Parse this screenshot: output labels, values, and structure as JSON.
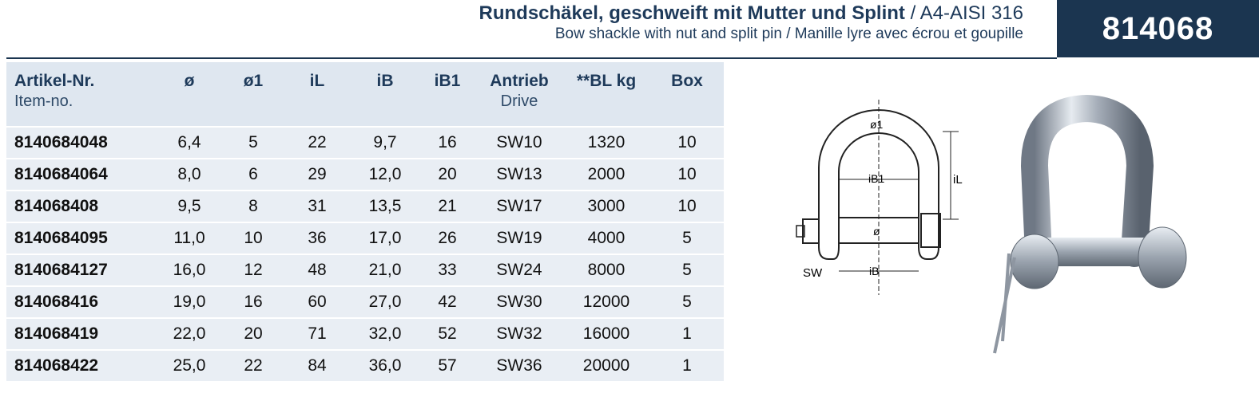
{
  "header": {
    "title_de": "Rundschäkel, geschweift mit Mutter und Splint",
    "material": "/ A4-AISI 316",
    "title_en": "Bow shackle with nut and split pin",
    "title_fr": "/ Manille lyre avec écrou et goupille",
    "article_number": "814068"
  },
  "table": {
    "columns": [
      {
        "de": "Artikel-Nr.",
        "en": "Item-no."
      },
      {
        "de": "ø",
        "en": ""
      },
      {
        "de": "ø1",
        "en": ""
      },
      {
        "de": "iL",
        "en": ""
      },
      {
        "de": "iB",
        "en": ""
      },
      {
        "de": "iB1",
        "en": ""
      },
      {
        "de": "Antrieb",
        "en": "Drive"
      },
      {
        "de": "**BL kg",
        "en": ""
      },
      {
        "de": "Box",
        "en": ""
      }
    ],
    "rows": [
      [
        "8140684048",
        "6,4",
        "5",
        "22",
        "9,7",
        "16",
        "SW10",
        "1320",
        "10"
      ],
      [
        "8140684064",
        "8,0",
        "6",
        "29",
        "12,0",
        "20",
        "SW13",
        "2000",
        "10"
      ],
      [
        "814068408",
        "9,5",
        "8",
        "31",
        "13,5",
        "21",
        "SW17",
        "3000",
        "10"
      ],
      [
        "8140684095",
        "11,0",
        "10",
        "36",
        "17,0",
        "26",
        "SW19",
        "4000",
        "5"
      ],
      [
        "8140684127",
        "16,0",
        "12",
        "48",
        "21,0",
        "33",
        "SW24",
        "8000",
        "5"
      ],
      [
        "814068416",
        "19,0",
        "16",
        "60",
        "27,0",
        "42",
        "SW30",
        "12000",
        "5"
      ],
      [
        "814068419",
        "22,0",
        "20",
        "71",
        "32,0",
        "52",
        "SW32",
        "16000",
        "1"
      ],
      [
        "814068422",
        "25,0",
        "22",
        "84",
        "36,0",
        "57",
        "SW36",
        "20000",
        "1"
      ]
    ]
  },
  "drawing": {
    "label_d1": "ø1",
    "label_ib1": "iB1",
    "label_il": "iL",
    "label_d": "ø",
    "label_sw": "SW",
    "label_ib": "iB"
  },
  "colors": {
    "brand_navy": "#1b3550",
    "header_bg": "#dfe7f0",
    "row_bg": "#e9eef4"
  }
}
